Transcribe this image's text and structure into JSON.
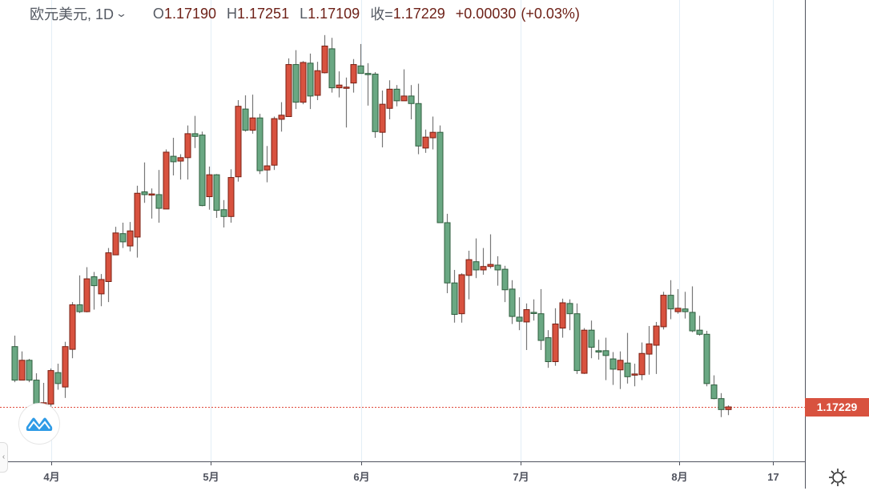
{
  "header": {
    "symbol": "欧元美元, 1D",
    "open_label": "O",
    "open": "1.17190",
    "high_label": "H",
    "high": "1.17251",
    "low_label": "L",
    "low": "1.17109",
    "close_label": "收=",
    "close": "1.17229",
    "change": "+0.00030",
    "change_pct": "(+0.03%)"
  },
  "price_tag": "1.17229",
  "colors": {
    "up": "#d8523f",
    "up_border": "#7a1f12",
    "down": "#6aa883",
    "down_border": "#2f5e3e",
    "last_line": "#e0493a",
    "grid": "#e3eef6",
    "axis": "#50535e"
  },
  "chart_data": {
    "type": "candlestick",
    "title": "欧元美元, 1D",
    "xlabel": "",
    "ylabel": "",
    "ylim": [
      1.166,
      1.231
    ],
    "last_price": 1.17229,
    "x_ticks": [
      {
        "label": "4月",
        "at_index": 5.1
      },
      {
        "label": "5月",
        "at_index": 27.2
      },
      {
        "label": "6月",
        "at_index": 48.1
      },
      {
        "label": "7月",
        "at_index": 70.2
      },
      {
        "label": "8月",
        "at_index": 92.2
      },
      {
        "label": "17",
        "at_index": 105.2
      }
    ],
    "ohlc_fields": [
      "open",
      "high",
      "low",
      "close"
    ],
    "candles": [
      [
        1.1811,
        1.1827,
        1.1759,
        1.1762
      ],
      [
        1.1762,
        1.1804,
        1.1762,
        1.1791
      ],
      [
        1.1791,
        1.1793,
        1.1759,
        1.1762
      ],
      [
        1.1762,
        1.1772,
        1.1721,
        1.1724
      ],
      [
        1.1727,
        1.1758,
        1.1721,
        1.1729
      ],
      [
        1.1727,
        1.1779,
        1.1723,
        1.1776
      ],
      [
        1.1773,
        1.1786,
        1.1748,
        1.1757
      ],
      [
        1.1752,
        1.1818,
        1.1736,
        1.1811
      ],
      [
        1.1807,
        1.1876,
        1.1794,
        1.1872
      ],
      [
        1.1872,
        1.1915,
        1.186,
        1.1862
      ],
      [
        1.1862,
        1.1927,
        1.1861,
        1.191
      ],
      [
        1.1913,
        1.192,
        1.1865,
        1.19
      ],
      [
        1.1888,
        1.1917,
        1.187,
        1.1909
      ],
      [
        1.1906,
        1.1955,
        1.1876,
        1.1948
      ],
      [
        1.1945,
        1.1986,
        1.1945,
        1.1977
      ],
      [
        1.1976,
        1.1992,
        1.1955,
        1.1964
      ],
      [
        1.1958,
        1.1993,
        1.195,
        1.198
      ],
      [
        1.1971,
        1.2046,
        1.1941,
        1.2035
      ],
      [
        1.2037,
        1.208,
        1.2021,
        1.2033
      ],
      [
        1.2033,
        1.2042,
        1.1998,
        1.2034
      ],
      [
        1.2033,
        1.2069,
        1.1992,
        1.2013
      ],
      [
        1.2012,
        1.2099,
        1.2012,
        1.2095
      ],
      [
        1.2089,
        1.2116,
        1.2061,
        1.2081
      ],
      [
        1.2082,
        1.2092,
        1.2055,
        1.2087
      ],
      [
        1.2087,
        1.2134,
        1.2055,
        1.2122
      ],
      [
        1.2122,
        1.2148,
        1.2101,
        1.2118
      ],
      [
        1.212,
        1.2125,
        1.2016,
        1.2017
      ],
      [
        1.203,
        1.2074,
        1.2011,
        1.2062
      ],
      [
        1.2062,
        1.2063,
        1.1999,
        1.201
      ],
      [
        1.2011,
        1.2025,
        1.1985,
        1.2001
      ],
      [
        1.2001,
        1.207,
        1.1992,
        1.2058
      ],
      [
        1.2059,
        1.2171,
        1.2052,
        1.2162
      ],
      [
        1.2158,
        1.2178,
        1.2125,
        1.2127
      ],
      [
        1.2127,
        1.2179,
        1.2122,
        1.2145
      ],
      [
        1.2145,
        1.2151,
        1.2063,
        1.2068
      ],
      [
        1.2069,
        1.2104,
        1.2051,
        1.2075
      ],
      [
        1.2076,
        1.2147,
        1.2069,
        1.2144
      ],
      [
        1.2143,
        1.2168,
        1.2125,
        1.2149
      ],
      [
        1.2147,
        1.2232,
        1.2147,
        1.2223
      ],
      [
        1.2223,
        1.2244,
        1.2158,
        1.2168
      ],
      [
        1.2168,
        1.2228,
        1.2165,
        1.2226
      ],
      [
        1.2225,
        1.2239,
        1.2158,
        1.2177
      ],
      [
        1.2178,
        1.2227,
        1.2171,
        1.2214
      ],
      [
        1.2211,
        1.2266,
        1.221,
        1.225
      ],
      [
        1.2246,
        1.2262,
        1.2182,
        1.2189
      ],
      [
        1.2189,
        1.2213,
        1.2175,
        1.2193
      ],
      [
        1.2189,
        1.2204,
        1.2131,
        1.219
      ],
      [
        1.2196,
        1.2231,
        1.2182,
        1.2223
      ],
      [
        1.2221,
        1.2253,
        1.221,
        1.221
      ],
      [
        1.221,
        1.2225,
        1.2163,
        1.2209
      ],
      [
        1.2209,
        1.2212,
        1.2116,
        1.2125
      ],
      [
        1.2124,
        1.2185,
        1.2102,
        1.2165
      ],
      [
        1.2159,
        1.22,
        1.2143,
        1.2187
      ],
      [
        1.2187,
        1.2193,
        1.2162,
        1.217
      ],
      [
        1.217,
        1.2216,
        1.217,
        1.2177
      ],
      [
        1.2177,
        1.2193,
        1.2143,
        1.2166
      ],
      [
        1.2166,
        1.2195,
        1.2092,
        1.2104
      ],
      [
        1.2101,
        1.2128,
        1.2094,
        1.2117
      ],
      [
        1.2116,
        1.2147,
        1.2099,
        1.2124
      ],
      [
        1.2124,
        1.2134,
        1.1992,
        1.1992
      ],
      [
        1.1992,
        1.2005,
        1.1889,
        1.1904
      ],
      [
        1.1904,
        1.1923,
        1.1846,
        1.1858
      ],
      [
        1.1859,
        1.1918,
        1.1846,
        1.1916
      ],
      [
        1.1915,
        1.1951,
        1.188,
        1.1938
      ],
      [
        1.1935,
        1.1969,
        1.1911,
        1.1923
      ],
      [
        1.1923,
        1.1955,
        1.1916,
        1.1928
      ],
      [
        1.1928,
        1.1975,
        1.1925,
        1.1931
      ],
      [
        1.193,
        1.1943,
        1.19,
        1.1923
      ],
      [
        1.1924,
        1.1929,
        1.1876,
        1.1894
      ],
      [
        1.1895,
        1.1908,
        1.1844,
        1.1855
      ],
      [
        1.1854,
        1.1883,
        1.1835,
        1.1848
      ],
      [
        1.1847,
        1.1874,
        1.1806,
        1.1865
      ],
      [
        1.1861,
        1.188,
        1.1849,
        1.186
      ],
      [
        1.1859,
        1.1895,
        1.1806,
        1.182
      ],
      [
        1.1824,
        1.1835,
        1.178,
        1.1789
      ],
      [
        1.1789,
        1.1867,
        1.1783,
        1.1844
      ],
      [
        1.1838,
        1.1881,
        1.1824,
        1.1875
      ],
      [
        1.1874,
        1.188,
        1.1835,
        1.1859
      ],
      [
        1.1859,
        1.1874,
        1.1771,
        1.1776
      ],
      [
        1.1772,
        1.1838,
        1.1771,
        1.1835
      ],
      [
        1.1835,
        1.1849,
        1.1794,
        1.181
      ],
      [
        1.1805,
        1.1821,
        1.1792,
        1.1803
      ],
      [
        1.1805,
        1.1824,
        1.1762,
        1.1798
      ],
      [
        1.1793,
        1.1803,
        1.1755,
        1.1778
      ],
      [
        1.1777,
        1.1804,
        1.1749,
        1.1791
      ],
      [
        1.1787,
        1.1831,
        1.1757,
        1.1767
      ],
      [
        1.177,
        1.1786,
        1.1753,
        1.1771
      ],
      [
        1.177,
        1.1817,
        1.1762,
        1.1801
      ],
      [
        1.18,
        1.1841,
        1.177,
        1.1815
      ],
      [
        1.1813,
        1.1847,
        1.1771,
        1.1841
      ],
      [
        1.184,
        1.1891,
        1.1836,
        1.1886
      ],
      [
        1.1886,
        1.1908,
        1.1851,
        1.1866
      ],
      [
        1.1862,
        1.1895,
        1.1859,
        1.1867
      ],
      [
        1.1866,
        1.1891,
        1.1852,
        1.1862
      ],
      [
        1.1861,
        1.1899,
        1.1832,
        1.1834
      ],
      [
        1.1835,
        1.1856,
        1.1827,
        1.1829
      ],
      [
        1.1829,
        1.1834,
        1.1753,
        1.1757
      ],
      [
        1.1755,
        1.1769,
        1.1734,
        1.1735
      ],
      [
        1.1735,
        1.1743,
        1.1708,
        1.1719
      ],
      [
        1.1719,
        1.17251,
        1.17109,
        1.17229
      ]
    ]
  }
}
